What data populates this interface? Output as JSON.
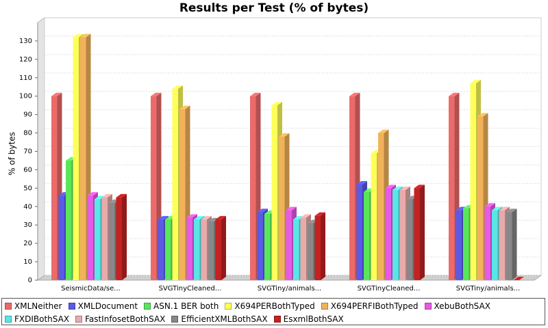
{
  "chart_data": {
    "type": "bar3d",
    "title": "Results per Test (% of bytes)",
    "y_label": "% of bytes",
    "categories": [
      "SeismicData/se...",
      "SVGTinyCleaned...",
      "SVGTiny/animals...",
      "SVGTinyCleaned...",
      "SVGTiny/animals..."
    ],
    "series": [
      {
        "name": "XMLNeither",
        "color": "#ec6a6a",
        "values": [
          100,
          100,
          100,
          100,
          100
        ]
      },
      {
        "name": "XMLDocument",
        "color": "#5a5ae6",
        "values": [
          46,
          33,
          37,
          52,
          38
        ]
      },
      {
        "name": "ASN.1 BER both",
        "color": "#5ae65a",
        "values": [
          65,
          33,
          36,
          48,
          39
        ]
      },
      {
        "name": "X694PERBothTyped",
        "color": "#ffff5a",
        "values": [
          132,
          104,
          95,
          69,
          107
        ]
      },
      {
        "name": "X694PERFIBothTyped",
        "color": "#f2b25a",
        "values": [
          132,
          93,
          78,
          80,
          89
        ]
      },
      {
        "name": "XebuBothSAX",
        "color": "#e65ae6",
        "values": [
          46,
          34,
          38,
          50,
          40
        ]
      },
      {
        "name": "FXDIBothSAX",
        "color": "#5ae6e6",
        "values": [
          44,
          33,
          33,
          49,
          38
        ]
      },
      {
        "name": "FastInfosetBothSAX",
        "color": "#e8abab",
        "values": [
          45,
          33,
          34,
          49,
          38
        ]
      },
      {
        "name": "EfficientXMLBothSAX",
        "color": "#888888",
        "values": [
          42,
          32,
          31,
          44,
          37
        ]
      },
      {
        "name": "EsxmlBothSAX",
        "color": "#c42222",
        "values": [
          45,
          33,
          35,
          50,
          0
        ]
      }
    ],
    "ylim": [
      0,
      140
    ],
    "yticks": [
      0,
      10,
      20,
      30,
      40,
      50,
      60,
      70,
      80,
      90,
      100,
      110,
      120,
      130
    ],
    "grid": true
  }
}
